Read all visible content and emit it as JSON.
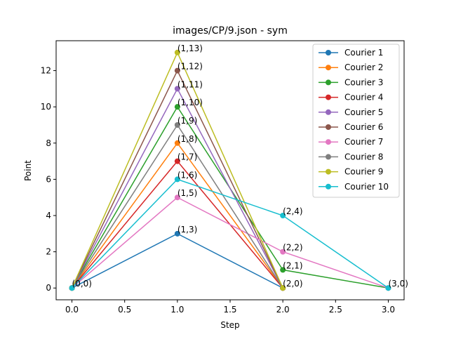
{
  "chart_data": {
    "type": "line",
    "title": "images/CP/9.json - sym",
    "xlabel": "Step",
    "ylabel": "Point",
    "xlim": [
      -0.15,
      3.15
    ],
    "ylim": [
      -0.65,
      13.65
    ],
    "xticks": [
      "0.0",
      "0.5",
      "1.0",
      "1.5",
      "2.0",
      "2.5",
      "3.0"
    ],
    "yticks": [
      "0",
      "2",
      "4",
      "6",
      "8",
      "10",
      "12"
    ],
    "grid": false,
    "legend_position": "top-right",
    "series": [
      {
        "name": "Courier 1",
        "color": "#1f77b4",
        "points": [
          [
            0,
            0
          ],
          [
            1,
            3
          ],
          [
            2,
            0
          ]
        ]
      },
      {
        "name": "Courier 2",
        "color": "#ff7f0e",
        "points": [
          [
            0,
            0
          ],
          [
            1,
            8
          ],
          [
            2,
            0
          ]
        ]
      },
      {
        "name": "Courier 3",
        "color": "#2ca02c",
        "points": [
          [
            0,
            0
          ],
          [
            1,
            10
          ],
          [
            2,
            1
          ],
          [
            3,
            0
          ]
        ]
      },
      {
        "name": "Courier 4",
        "color": "#d62728",
        "points": [
          [
            0,
            0
          ],
          [
            1,
            7
          ],
          [
            2,
            0
          ]
        ]
      },
      {
        "name": "Courier 5",
        "color": "#9467bd",
        "points": [
          [
            0,
            0
          ],
          [
            1,
            11
          ],
          [
            2,
            0
          ]
        ]
      },
      {
        "name": "Courier 6",
        "color": "#8c564b",
        "points": [
          [
            0,
            0
          ],
          [
            1,
            12
          ],
          [
            2,
            0
          ]
        ]
      },
      {
        "name": "Courier 7",
        "color": "#e377c2",
        "points": [
          [
            0,
            0
          ],
          [
            1,
            5
          ],
          [
            2,
            2
          ],
          [
            3,
            0
          ]
        ]
      },
      {
        "name": "Courier 8",
        "color": "#7f7f7f",
        "points": [
          [
            0,
            0
          ],
          [
            1,
            9
          ],
          [
            2,
            0
          ]
        ]
      },
      {
        "name": "Courier 9",
        "color": "#bcbd22",
        "points": [
          [
            0,
            0
          ],
          [
            1,
            13
          ],
          [
            2,
            0
          ]
        ]
      },
      {
        "name": "Courier 10",
        "color": "#17becf",
        "points": [
          [
            0,
            0
          ],
          [
            1,
            6
          ],
          [
            2,
            4
          ],
          [
            3,
            0
          ]
        ]
      }
    ],
    "point_labels": [
      {
        "x": 0,
        "y": 0,
        "text": "(0,0)"
      },
      {
        "x": 1,
        "y": 3,
        "text": "(1,3)"
      },
      {
        "x": 1,
        "y": 5,
        "text": "(1,5)"
      },
      {
        "x": 1,
        "y": 6,
        "text": "(1,6)"
      },
      {
        "x": 1,
        "y": 7,
        "text": "(1,7)"
      },
      {
        "x": 1,
        "y": 8,
        "text": "(1,8)"
      },
      {
        "x": 1,
        "y": 9,
        "text": "(1,9)"
      },
      {
        "x": 1,
        "y": 10,
        "text": "(1,10)"
      },
      {
        "x": 1,
        "y": 11,
        "text": "(1,11)"
      },
      {
        "x": 1,
        "y": 12,
        "text": "(1,12)"
      },
      {
        "x": 1,
        "y": 13,
        "text": "(1,13)"
      },
      {
        "x": 2,
        "y": 0,
        "text": "(2,0)"
      },
      {
        "x": 2,
        "y": 1,
        "text": "(2,1)"
      },
      {
        "x": 2,
        "y": 2,
        "text": "(2,2)"
      },
      {
        "x": 2,
        "y": 4,
        "text": "(2,4)"
      },
      {
        "x": 3,
        "y": 0,
        "text": "(3,0)"
      }
    ]
  }
}
